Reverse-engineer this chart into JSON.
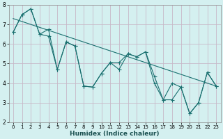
{
  "xlabel": "Humidex (Indice chaleur)",
  "xlim": [
    -0.5,
    23.5
  ],
  "ylim": [
    2,
    8
  ],
  "yticks": [
    2,
    3,
    4,
    5,
    6,
    7,
    8
  ],
  "xticks": [
    0,
    1,
    2,
    3,
    4,
    5,
    6,
    7,
    8,
    9,
    10,
    11,
    12,
    13,
    14,
    15,
    16,
    17,
    18,
    19,
    20,
    21,
    22,
    23
  ],
  "background_color": "#d4f0f0",
  "line_color": "#1a7070",
  "grid_color": "#c8b8c8",
  "line1": {
    "x": [
      0,
      1,
      2,
      3,
      4,
      5,
      6,
      7,
      8,
      9,
      10,
      11,
      12,
      13,
      14,
      15,
      16,
      17,
      18,
      19,
      20,
      21,
      22,
      23
    ],
    "y": [
      6.6,
      7.5,
      7.8,
      6.5,
      6.75,
      4.7,
      6.1,
      5.9,
      3.85,
      3.8,
      4.5,
      5.05,
      4.7,
      5.5,
      5.35,
      5.6,
      4.35,
      3.15,
      4.0,
      3.8,
      2.45,
      3.0,
      4.55,
      3.85
    ]
  },
  "line2": {
    "x": [
      0,
      1,
      2,
      3,
      4,
      5,
      6,
      7,
      8,
      9,
      10,
      11,
      12,
      13,
      14,
      15,
      16,
      17,
      18,
      19,
      20,
      21,
      22,
      23
    ],
    "y": [
      6.6,
      7.5,
      7.8,
      6.5,
      6.4,
      4.7,
      6.1,
      5.9,
      3.85,
      3.8,
      4.5,
      5.05,
      5.05,
      5.5,
      5.35,
      5.6,
      4.0,
      3.15,
      3.15,
      3.8,
      2.45,
      3.0,
      4.55,
      3.85
    ]
  },
  "line3": {
    "x": [
      0,
      23
    ],
    "y": [
      7.3,
      3.85
    ]
  }
}
